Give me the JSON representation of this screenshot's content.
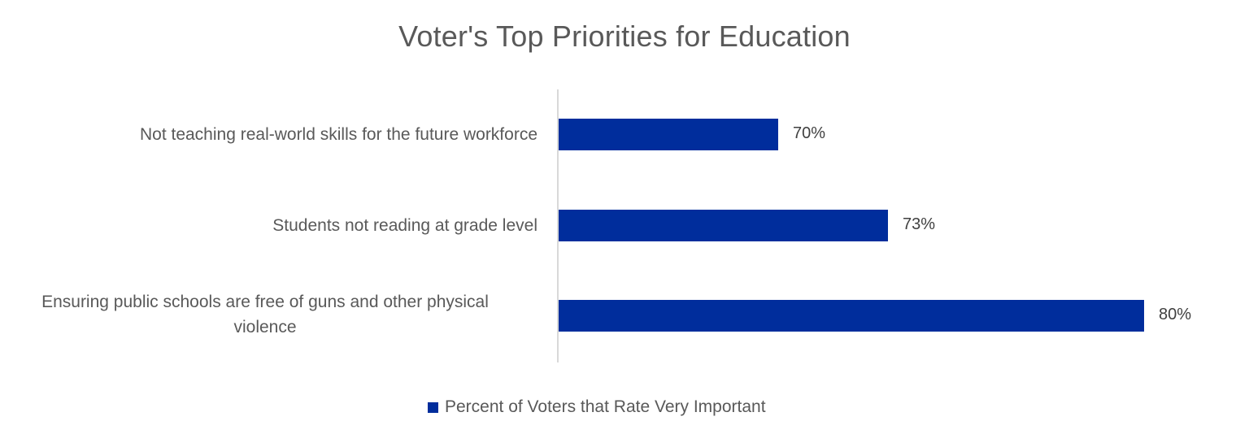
{
  "chart_data": {
    "type": "bar",
    "orientation": "horizontal",
    "title": "Voter's Top Priorities for Education",
    "categories": [
      "Not teaching real-world skills for the future workforce",
      "Students not reading at grade level",
      "Ensuring public schools are free of guns and other physical violence"
    ],
    "series": [
      {
        "name": "Percent of Voters that Rate Very Important",
        "values": [
          70,
          73,
          80
        ],
        "labels": [
          "70%",
          "73%",
          "80%"
        ],
        "color": "#002D9C"
      }
    ],
    "xlabel": "",
    "ylabel": "",
    "xlim": [
      64,
      80
    ],
    "grid": false,
    "legend_position": "bottom"
  },
  "title": "Voter's Top Priorities for Education",
  "rows": [
    {
      "category": "Not teaching real-world skills for the future workforce",
      "value_label": "70%"
    },
    {
      "category": "Students not reading at grade level",
      "value_label": "73%"
    },
    {
      "category_line1": "Ensuring public schools are free of guns and other physical",
      "category_line2": "violence",
      "value_label": "80%"
    }
  ],
  "legend": {
    "label": "Percent of Voters that Rate Very Important"
  }
}
